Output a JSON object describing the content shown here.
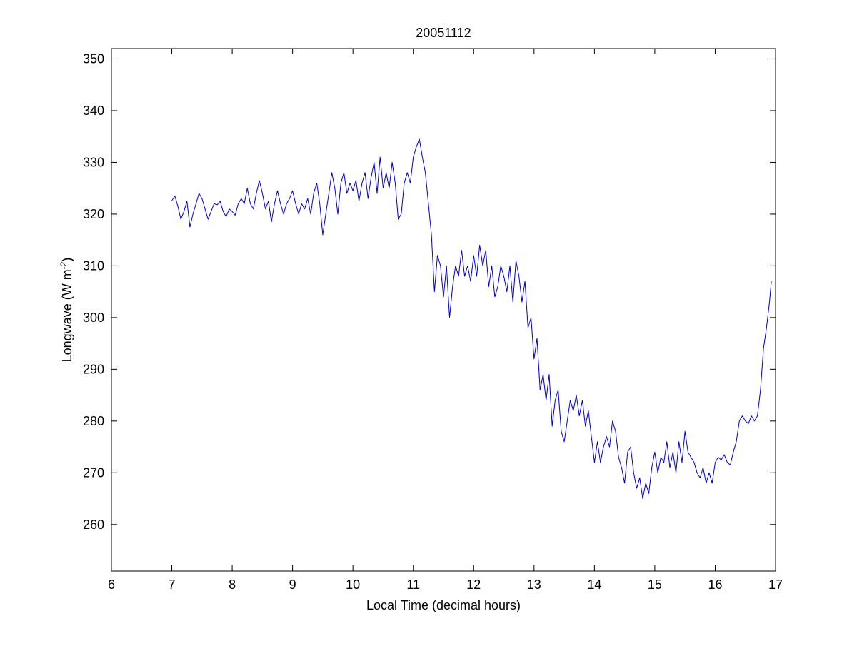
{
  "chart_data": {
    "type": "line",
    "title": "20051112",
    "xlabel": "Local Time (decimal hours)",
    "ylabel": {
      "main": "Longwave (W m",
      "superscript": "-2",
      "close": ")"
    },
    "xlim": [
      6,
      17
    ],
    "ylim": [
      251,
      352
    ],
    "xticks": [
      6,
      7,
      8,
      9,
      10,
      11,
      12,
      13,
      14,
      15,
      16,
      17
    ],
    "yticks": [
      260,
      270,
      280,
      290,
      300,
      310,
      320,
      330,
      340,
      350
    ],
    "grid": false,
    "series": [
      {
        "color": "#0000cc",
        "points": [
          [
            7.0,
            322.6
          ],
          [
            7.05,
            323.5
          ],
          [
            7.1,
            321.5
          ],
          [
            7.15,
            319.0
          ],
          [
            7.2,
            320.5
          ],
          [
            7.25,
            322.5
          ],
          [
            7.3,
            317.5
          ],
          [
            7.35,
            320.0
          ],
          [
            7.4,
            322.0
          ],
          [
            7.45,
            324.0
          ],
          [
            7.5,
            323.0
          ],
          [
            7.55,
            321.0
          ],
          [
            7.6,
            319.0
          ],
          [
            7.65,
            320.5
          ],
          [
            7.7,
            322.0
          ],
          [
            7.75,
            321.8
          ],
          [
            7.8,
            322.5
          ],
          [
            7.85,
            320.5
          ],
          [
            7.9,
            319.5
          ],
          [
            7.95,
            321.0
          ],
          [
            8.0,
            320.5
          ],
          [
            8.05,
            319.8
          ],
          [
            8.1,
            322.0
          ],
          [
            8.15,
            323.0
          ],
          [
            8.2,
            322.0
          ],
          [
            8.25,
            325.0
          ],
          [
            8.3,
            322.0
          ],
          [
            8.35,
            321.0
          ],
          [
            8.4,
            324.0
          ],
          [
            8.45,
            326.5
          ],
          [
            8.5,
            324.0
          ],
          [
            8.55,
            321.0
          ],
          [
            8.6,
            322.5
          ],
          [
            8.65,
            318.5
          ],
          [
            8.7,
            322.0
          ],
          [
            8.75,
            324.5
          ],
          [
            8.8,
            322.0
          ],
          [
            8.85,
            320.0
          ],
          [
            8.9,
            322.0
          ],
          [
            8.95,
            323.0
          ],
          [
            9.0,
            324.5
          ],
          [
            9.05,
            322.0
          ],
          [
            9.1,
            320.0
          ],
          [
            9.15,
            322.0
          ],
          [
            9.2,
            321.0
          ],
          [
            9.25,
            323.0
          ],
          [
            9.3,
            320.0
          ],
          [
            9.35,
            324.0
          ],
          [
            9.4,
            326.0
          ],
          [
            9.45,
            322.0
          ],
          [
            9.5,
            316.0
          ],
          [
            9.55,
            320.0
          ],
          [
            9.6,
            324.0
          ],
          [
            9.65,
            328.0
          ],
          [
            9.7,
            325.0
          ],
          [
            9.75,
            320.0
          ],
          [
            9.8,
            326.0
          ],
          [
            9.85,
            328.0
          ],
          [
            9.9,
            324.0
          ],
          [
            9.95,
            326.0
          ],
          [
            10.0,
            324.5
          ],
          [
            10.05,
            326.5
          ],
          [
            10.1,
            322.5
          ],
          [
            10.15,
            326.0
          ],
          [
            10.2,
            328.0
          ],
          [
            10.25,
            323.0
          ],
          [
            10.3,
            327.0
          ],
          [
            10.35,
            330.0
          ],
          [
            10.4,
            324.0
          ],
          [
            10.45,
            331.0
          ],
          [
            10.5,
            325.0
          ],
          [
            10.55,
            328.0
          ],
          [
            10.6,
            325.0
          ],
          [
            10.65,
            330.0
          ],
          [
            10.7,
            326.0
          ],
          [
            10.75,
            319.0
          ],
          [
            10.8,
            320.0
          ],
          [
            10.85,
            326.0
          ],
          [
            10.9,
            328.0
          ],
          [
            10.95,
            326.0
          ],
          [
            11.0,
            331.0
          ],
          [
            11.05,
            333.0
          ],
          [
            11.1,
            334.5
          ],
          [
            11.15,
            331.0
          ],
          [
            11.2,
            328.0
          ],
          [
            11.25,
            322.0
          ],
          [
            11.3,
            316.0
          ],
          [
            11.35,
            305.0
          ],
          [
            11.4,
            312.0
          ],
          [
            11.45,
            310.0
          ],
          [
            11.5,
            304.0
          ],
          [
            11.55,
            310.0
          ],
          [
            11.6,
            300.0
          ],
          [
            11.65,
            306.0
          ],
          [
            11.7,
            310.0
          ],
          [
            11.75,
            308.0
          ],
          [
            11.8,
            313.0
          ],
          [
            11.85,
            308.0
          ],
          [
            11.9,
            310.0
          ],
          [
            11.95,
            307.0
          ],
          [
            12.0,
            312.0
          ],
          [
            12.05,
            308.0
          ],
          [
            12.1,
            314.0
          ],
          [
            12.15,
            310.0
          ],
          [
            12.2,
            313.0
          ],
          [
            12.25,
            306.0
          ],
          [
            12.3,
            310.0
          ],
          [
            12.35,
            304.0
          ],
          [
            12.4,
            306.0
          ],
          [
            12.45,
            310.0
          ],
          [
            12.5,
            308.0
          ],
          [
            12.55,
            305.0
          ],
          [
            12.6,
            310.0
          ],
          [
            12.65,
            303.0
          ],
          [
            12.7,
            311.0
          ],
          [
            12.75,
            308.0
          ],
          [
            12.8,
            303.0
          ],
          [
            12.85,
            307.0
          ],
          [
            12.9,
            298.0
          ],
          [
            12.95,
            300.0
          ],
          [
            13.0,
            292.0
          ],
          [
            13.05,
            296.0
          ],
          [
            13.1,
            286.0
          ],
          [
            13.15,
            289.0
          ],
          [
            13.2,
            284.0
          ],
          [
            13.25,
            289.0
          ],
          [
            13.3,
            279.0
          ],
          [
            13.35,
            284.0
          ],
          [
            13.4,
            286.0
          ],
          [
            13.45,
            278.0
          ],
          [
            13.5,
            276.0
          ],
          [
            13.55,
            280.0
          ],
          [
            13.6,
            284.0
          ],
          [
            13.65,
            282.0
          ],
          [
            13.7,
            285.0
          ],
          [
            13.75,
            281.0
          ],
          [
            13.8,
            284.0
          ],
          [
            13.85,
            279.0
          ],
          [
            13.9,
            282.0
          ],
          [
            13.95,
            277.0
          ],
          [
            14.0,
            272.0
          ],
          [
            14.05,
            276.0
          ],
          [
            14.1,
            272.0
          ],
          [
            14.15,
            275.0
          ],
          [
            14.2,
            277.0
          ],
          [
            14.25,
            275.0
          ],
          [
            14.3,
            280.0
          ],
          [
            14.35,
            278.0
          ],
          [
            14.4,
            273.0
          ],
          [
            14.45,
            271.0
          ],
          [
            14.5,
            268.0
          ],
          [
            14.55,
            274.0
          ],
          [
            14.6,
            275.0
          ],
          [
            14.65,
            270.0
          ],
          [
            14.7,
            267.0
          ],
          [
            14.75,
            269.0
          ],
          [
            14.8,
            265.0
          ],
          [
            14.85,
            268.0
          ],
          [
            14.9,
            266.0
          ],
          [
            14.95,
            271.0
          ],
          [
            15.0,
            274.0
          ],
          [
            15.05,
            270.0
          ],
          [
            15.1,
            273.0
          ],
          [
            15.15,
            272.0
          ],
          [
            15.2,
            276.0
          ],
          [
            15.25,
            271.0
          ],
          [
            15.3,
            274.0
          ],
          [
            15.35,
            270.0
          ],
          [
            15.4,
            276.0
          ],
          [
            15.45,
            272.0
          ],
          [
            15.5,
            278.0
          ],
          [
            15.55,
            274.0
          ],
          [
            15.6,
            273.0
          ],
          [
            15.65,
            272.0
          ],
          [
            15.7,
            270.0
          ],
          [
            15.75,
            269.0
          ],
          [
            15.8,
            271.0
          ],
          [
            15.85,
            268.0
          ],
          [
            15.9,
            270.0
          ],
          [
            15.95,
            268.0
          ],
          [
            16.0,
            272.0
          ],
          [
            16.05,
            273.0
          ],
          [
            16.1,
            272.5
          ],
          [
            16.15,
            273.5
          ],
          [
            16.2,
            272.0
          ],
          [
            16.25,
            271.5
          ],
          [
            16.3,
            274.0
          ],
          [
            16.35,
            276.0
          ],
          [
            16.4,
            280.0
          ],
          [
            16.45,
            281.0
          ],
          [
            16.5,
            280.0
          ],
          [
            16.55,
            279.5
          ],
          [
            16.6,
            281.0
          ],
          [
            16.65,
            280.0
          ],
          [
            16.7,
            281.0
          ],
          [
            16.75,
            286.0
          ],
          [
            16.8,
            294.0
          ],
          [
            16.85,
            298.0
          ],
          [
            16.9,
            303.0
          ],
          [
            16.93,
            307.0
          ]
        ]
      }
    ]
  }
}
